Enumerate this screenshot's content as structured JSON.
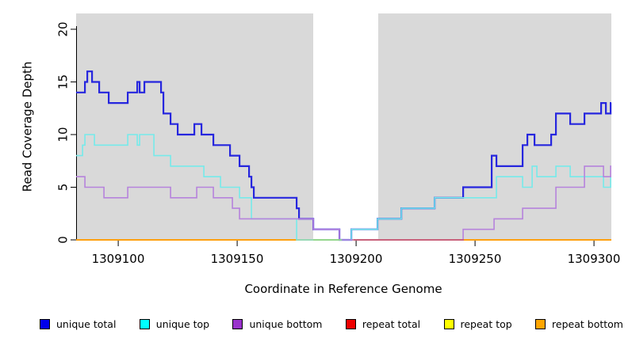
{
  "chart_data": {
    "type": "line",
    "subtype": "step-coverage",
    "title": "",
    "xlabel": "Coordinate in Reference Genome",
    "ylabel": "Read Coverage Depth",
    "xlim": [
      1309082.3,
      1309307.3
    ],
    "ylim": [
      0,
      21.5
    ],
    "grid": false,
    "legend_position": "bottom",
    "x_ticks": [
      {
        "coord": 1309100,
        "label": "1309100"
      },
      {
        "coord": 1309150,
        "label": "1309150"
      },
      {
        "coord": 1309200,
        "label": "1309200"
      },
      {
        "coord": 1309250,
        "label": "1309250"
      },
      {
        "coord": 1309300,
        "label": "1309300"
      }
    ],
    "y_ticks": [
      {
        "value": 0,
        "label": "0"
      },
      {
        "value": 5,
        "label": "5"
      },
      {
        "value": 10,
        "label": "10"
      },
      {
        "value": 15,
        "label": "15"
      },
      {
        "value": 20,
        "label": "20"
      }
    ],
    "background_bands": [
      {
        "from": 1309082.3,
        "to": 1309182,
        "color": "#d9d9d9",
        "meaning": "shaded region"
      },
      {
        "from": 1309182,
        "to": 1309209.3,
        "color": "#ffffff",
        "meaning": "unshaded gap region"
      },
      {
        "from": 1309209.3,
        "to": 1309307.3,
        "color": "#d9d9d9",
        "meaning": "shaded region"
      }
    ],
    "series": [
      {
        "name": "repeat total",
        "color": "#dd0000",
        "width": 1.6,
        "steps": [
          [
            1309082.3,
            0
          ]
        ]
      },
      {
        "name": "repeat top",
        "color": "#ffff00",
        "width": 1.6,
        "steps": [
          [
            1309082.3,
            0
          ]
        ]
      },
      {
        "name": "repeat bottom",
        "color": "#ff9d0a",
        "width": 1.8,
        "steps": [
          [
            1309082.3,
            0
          ]
        ]
      },
      {
        "name": "unique total",
        "color": "#2626de",
        "width": 2.2,
        "steps": [
          [
            1309082.3,
            14
          ],
          [
            1309086,
            15
          ],
          [
            1309087,
            16
          ],
          [
            1309089,
            15
          ],
          [
            1309092,
            14
          ],
          [
            1309096,
            13
          ],
          [
            1309104,
            14
          ],
          [
            1309108,
            15
          ],
          [
            1309109,
            14
          ],
          [
            1309111,
            15
          ],
          [
            1309118,
            14
          ],
          [
            1309119,
            12
          ],
          [
            1309122,
            11
          ],
          [
            1309125,
            10
          ],
          [
            1309132,
            11
          ],
          [
            1309135,
            10
          ],
          [
            1309140,
            9
          ],
          [
            1309147,
            8
          ],
          [
            1309151,
            7
          ],
          [
            1309155,
            6
          ],
          [
            1309156,
            5
          ],
          [
            1309157,
            4
          ],
          [
            1309175,
            3
          ],
          [
            1309176,
            2
          ],
          [
            1309182,
            1
          ],
          [
            1309193,
            0
          ],
          [
            1309198,
            1
          ],
          [
            1309209,
            2
          ],
          [
            1309219,
            3
          ],
          [
            1309233,
            4
          ],
          [
            1309245,
            5
          ],
          [
            1309257,
            8
          ],
          [
            1309259,
            7
          ],
          [
            1309270,
            9
          ],
          [
            1309272,
            10
          ],
          [
            1309275,
            9
          ],
          [
            1309282,
            10
          ],
          [
            1309284,
            12
          ],
          [
            1309290,
            11
          ],
          [
            1309296,
            12
          ],
          [
            1309303,
            13
          ],
          [
            1309305,
            12
          ],
          [
            1309307,
            13
          ]
        ]
      },
      {
        "name": "unique top",
        "color": "#76eaea",
        "width": 1.6,
        "steps": [
          [
            1309082.3,
            8
          ],
          [
            1309085,
            9
          ],
          [
            1309086,
            10
          ],
          [
            1309090,
            9
          ],
          [
            1309104,
            10
          ],
          [
            1309108,
            9
          ],
          [
            1309109,
            10
          ],
          [
            1309115,
            8
          ],
          [
            1309122,
            7
          ],
          [
            1309136,
            6
          ],
          [
            1309143,
            5
          ],
          [
            1309151,
            4
          ],
          [
            1309156,
            2
          ],
          [
            1309175,
            0
          ],
          [
            1309198,
            1
          ],
          [
            1309209,
            2
          ],
          [
            1309219,
            3
          ],
          [
            1309233,
            4
          ],
          [
            1309259,
            6
          ],
          [
            1309270,
            5
          ],
          [
            1309274,
            7
          ],
          [
            1309276,
            6
          ],
          [
            1309284,
            7
          ],
          [
            1309290,
            6
          ],
          [
            1309304,
            5
          ],
          [
            1309307,
            6
          ]
        ]
      },
      {
        "name": "unique bottom",
        "color": "#b683dc",
        "width": 1.6,
        "steps": [
          [
            1309082.3,
            6
          ],
          [
            1309086,
            5
          ],
          [
            1309094,
            4
          ],
          [
            1309104,
            5
          ],
          [
            1309122,
            4
          ],
          [
            1309133,
            5
          ],
          [
            1309140,
            4
          ],
          [
            1309148,
            3
          ],
          [
            1309151,
            2
          ],
          [
            1309182,
            1
          ],
          [
            1309193,
            0
          ],
          [
            1309245,
            1
          ],
          [
            1309258,
            2
          ],
          [
            1309270,
            3
          ],
          [
            1309284,
            5
          ],
          [
            1309296,
            7
          ],
          [
            1309304,
            6
          ],
          [
            1309307,
            7
          ]
        ]
      }
    ],
    "baseline_overlay_segments": [
      {
        "from": 1309182,
        "to": 1309194,
        "color": "#8fd98f"
      },
      {
        "from": 1309199,
        "to": 1309245.3,
        "color": "#c65b7c"
      }
    ]
  },
  "legend": {
    "items": [
      {
        "label": "unique total",
        "color": "#0000ee"
      },
      {
        "label": "unique top",
        "color": "#00ffff"
      },
      {
        "label": "unique bottom",
        "color": "#9932cc"
      },
      {
        "label": "repeat total",
        "color": "#ee0000"
      },
      {
        "label": "repeat top",
        "color": "#ffff00"
      },
      {
        "label": "repeat bottom",
        "color": "#ffa500"
      }
    ]
  }
}
